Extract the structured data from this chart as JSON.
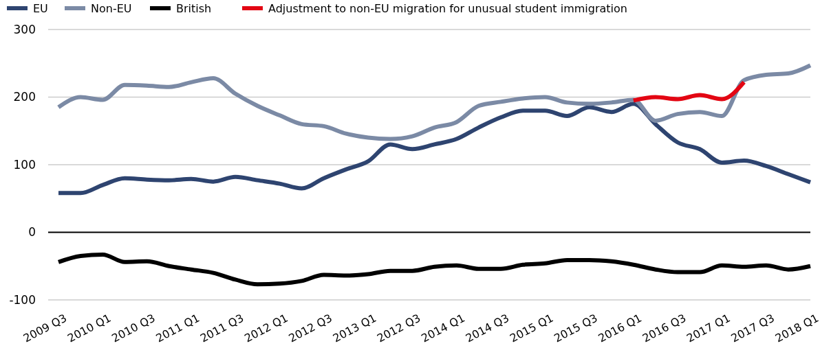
{
  "chart_data": {
    "type": "line",
    "categories": [
      "2009 Q3",
      null,
      "2010 Q1",
      null,
      "2010 Q3",
      null,
      "2011 Q1",
      null,
      "2011 Q3",
      null,
      "2012 Q1",
      null,
      "2012 Q3",
      null,
      "2013 Q1",
      null,
      "2012 Q3",
      null,
      "2014 Q1",
      null,
      "2014 Q3",
      null,
      "2015 Q1",
      null,
      "2015 Q3",
      null,
      "2016 Q1",
      null,
      "2016 Q3",
      null,
      "2017 Q1",
      null,
      "2017 Q3",
      null,
      "2018 Q1"
    ],
    "series": [
      {
        "name": "EU",
        "color": "#2e4470",
        "values": [
          58,
          58,
          70,
          80,
          78,
          77,
          79,
          75,
          82,
          77,
          72,
          65,
          80,
          93,
          105,
          130,
          123,
          130,
          138,
          155,
          170,
          180,
          180,
          172,
          185,
          178,
          190,
          160,
          133,
          123,
          103,
          106,
          98,
          86,
          74
        ]
      },
      {
        "name": "Non-EU",
        "color": "#7b8aa5",
        "values": [
          185,
          200,
          196,
          218,
          217,
          215,
          222,
          228,
          205,
          187,
          173,
          160,
          157,
          146,
          140,
          138,
          142,
          155,
          163,
          187,
          193,
          198,
          200,
          192,
          190,
          192,
          196,
          165,
          175,
          178,
          172,
          225,
          233,
          235,
          247
        ]
      },
      {
        "name": "British",
        "color": "#000000",
        "values": [
          -44,
          -35,
          -33,
          -44,
          -43,
          -50,
          -55,
          -60,
          -70,
          -77,
          -76,
          -72,
          -63,
          -64,
          -62,
          -57,
          -57,
          -51,
          -49,
          -54,
          -54,
          -48,
          -46,
          -41,
          -41,
          -43,
          -48,
          -55,
          -59,
          -59,
          -49,
          -51,
          -49,
          -55,
          -50
        ]
      },
      {
        "name": "Adjustment to non-EU migration for unusual student immigration",
        "color": "#e30613",
        "values": [
          null,
          null,
          null,
          null,
          null,
          null,
          null,
          null,
          null,
          null,
          null,
          null,
          null,
          null,
          null,
          null,
          null,
          null,
          null,
          null,
          null,
          null,
          null,
          null,
          null,
          null,
          195,
          200,
          197,
          203,
          197,
          222,
          null,
          null,
          null
        ]
      }
    ],
    "ylim": [
      -100,
      300
    ],
    "yticks": [
      -100,
      0,
      100,
      200,
      300
    ],
    "grid": "y",
    "legend": "top left",
    "line_style": "solid",
    "marker": "none"
  }
}
